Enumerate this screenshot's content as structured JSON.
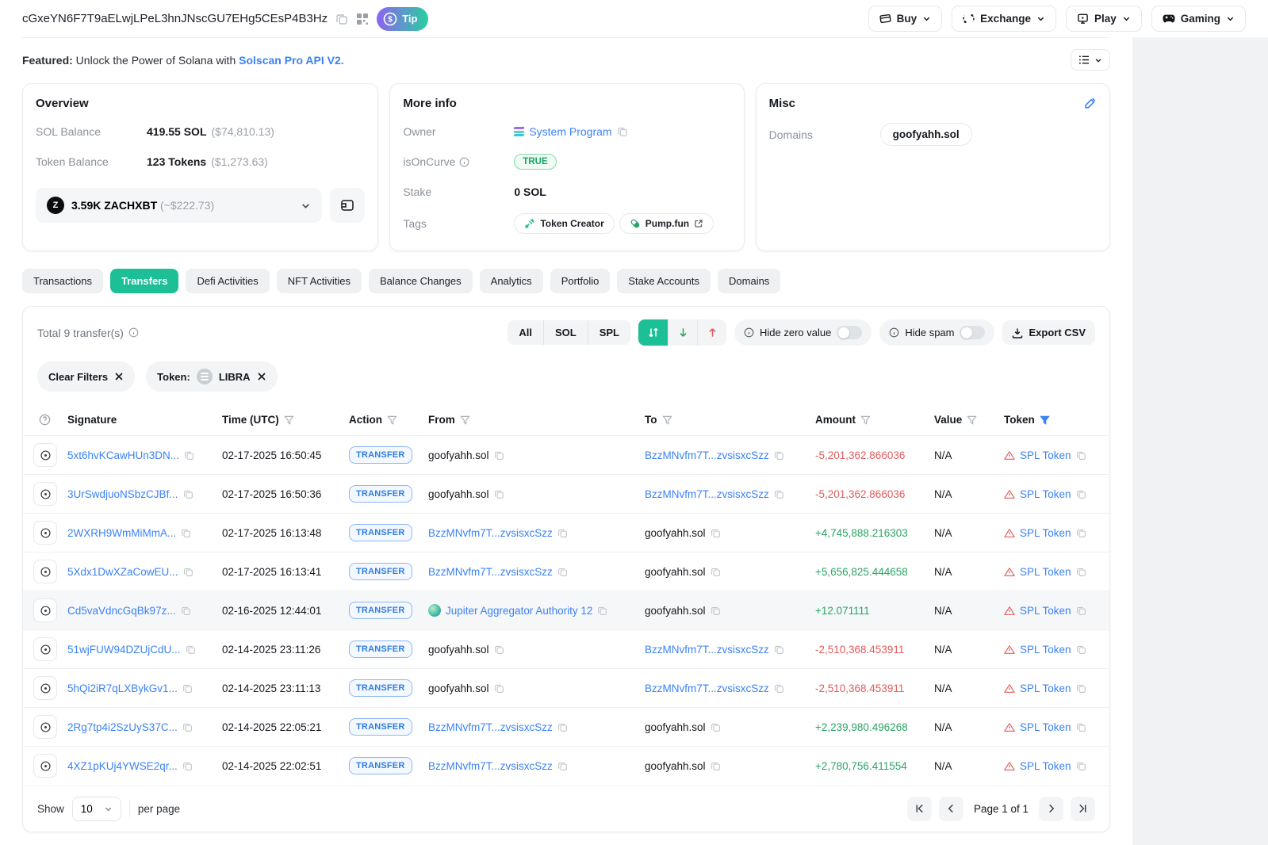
{
  "header": {
    "address": "cGxeYN6F7T9aELwjLPeL3hnJNscGU7EHg5CEsP4B3Hz",
    "tip_label": "Tip",
    "nav_buttons": [
      {
        "label": "Buy",
        "icon": "card-icon"
      },
      {
        "label": "Exchange",
        "icon": "exchange-icon"
      },
      {
        "label": "Play",
        "icon": "monitor-play-icon"
      },
      {
        "label": "Gaming",
        "icon": "gamepad-icon"
      }
    ]
  },
  "featured": {
    "prefix": "Featured:",
    "text": " Unlock the Power of Solana with ",
    "link": "Solscan Pro API V2."
  },
  "overview": {
    "title": "Overview",
    "sol_balance_label": "SOL Balance",
    "sol_balance": "419.55 SOL",
    "sol_balance_usd": "($74,810.13)",
    "token_balance_label": "Token Balance",
    "token_balance": "123 Tokens",
    "token_balance_usd": "($1,273.63)",
    "token_selector": {
      "amount": "3.59K ZACHXBT",
      "usd": "(~$222.73)",
      "token_icon": "zachxbt-token-icon"
    }
  },
  "more_info": {
    "title": "More info",
    "owner_label": "Owner",
    "owner": "System Program",
    "isoncurve_label": "isOnCurve",
    "isoncurve_value": "TRUE",
    "stake_label": "Stake",
    "stake_value": "0 SOL",
    "tags_label": "Tags",
    "tags": [
      {
        "label": "Token Creator",
        "icon": "gavel-icon",
        "external": false
      },
      {
        "label": "Pump.fun",
        "icon": "pill-icon",
        "external": true
      }
    ]
  },
  "misc": {
    "title": "Misc",
    "domains_label": "Domains",
    "domains": [
      "goofyahh.sol"
    ]
  },
  "tabs": {
    "active": "Transfers",
    "items": [
      "Transactions",
      "Transfers",
      "Defi Activities",
      "NFT Activities",
      "Balance Changes",
      "Analytics",
      "Portfolio",
      "Stake Accounts",
      "Domains"
    ]
  },
  "transfers": {
    "total_text": "Total 9 transfer(s)",
    "scope_options": [
      "All",
      "SOL",
      "SPL"
    ],
    "hide_zero_label": "Hide zero value",
    "hide_spam_label": "Hide spam",
    "export_label": "Export CSV",
    "filters": {
      "clear_label": "Clear Filters",
      "token_label": "Token:",
      "token_value": "LIBRA"
    },
    "table": {
      "headers": [
        "Signature",
        "Time (UTC)",
        "Action",
        "From",
        "To",
        "Amount",
        "Value",
        "Token"
      ],
      "rows": [
        {
          "signature": "5xt6hvKCawHUn3DN...",
          "time": "02-17-2025 16:50:45",
          "action": "TRANSFER",
          "from": "goofyahh.sol",
          "from_link": false,
          "from_icon": null,
          "to": "BzzMNvfm7T...zvsisxcSzz",
          "to_link": true,
          "amount": "-5,201,362.866036",
          "direction": "out",
          "value": "N/A",
          "token": "SPL Token",
          "highlight": false
        },
        {
          "signature": "3UrSwdjuoNSbzCJBf...",
          "time": "02-17-2025 16:50:36",
          "action": "TRANSFER",
          "from": "goofyahh.sol",
          "from_link": false,
          "from_icon": null,
          "to": "BzzMNvfm7T...zvsisxcSzz",
          "to_link": true,
          "amount": "-5,201,362.866036",
          "direction": "out",
          "value": "N/A",
          "token": "SPL Token",
          "highlight": false
        },
        {
          "signature": "2WXRH9WmMiMmA...",
          "time": "02-17-2025 16:13:48",
          "action": "TRANSFER",
          "from": "BzzMNvfm7T...zvsisxcSzz",
          "from_link": true,
          "from_icon": null,
          "to": "goofyahh.sol",
          "to_link": false,
          "amount": "+4,745,888.216303",
          "direction": "in",
          "value": "N/A",
          "token": "SPL Token",
          "highlight": false
        },
        {
          "signature": "5Xdx1DwXZaCowEU...",
          "time": "02-17-2025 16:13:41",
          "action": "TRANSFER",
          "from": "BzzMNvfm7T...zvsisxcSzz",
          "from_link": true,
          "from_icon": null,
          "to": "goofyahh.sol",
          "to_link": false,
          "amount": "+5,656,825.444658",
          "direction": "in",
          "value": "N/A",
          "token": "SPL Token",
          "highlight": false
        },
        {
          "signature": "Cd5vaVdncGqBk97z...",
          "time": "02-16-2025 12:44:01",
          "action": "TRANSFER",
          "from": "Jupiter Aggregator Authority 12",
          "from_link": true,
          "from_icon": "jupiter",
          "to": "goofyahh.sol",
          "to_link": false,
          "amount": "+12.071111",
          "direction": "in",
          "value": "N/A",
          "token": "SPL Token",
          "highlight": true
        },
        {
          "signature": "51wjFUW94DZUjCdU...",
          "time": "02-14-2025 23:11:26",
          "action": "TRANSFER",
          "from": "goofyahh.sol",
          "from_link": false,
          "from_icon": null,
          "to": "BzzMNvfm7T...zvsisxcSzz",
          "to_link": true,
          "amount": "-2,510,368.453911",
          "direction": "out",
          "value": "N/A",
          "token": "SPL Token",
          "highlight": false
        },
        {
          "signature": "5hQi2iR7qLXBykGv1...",
          "time": "02-14-2025 23:11:13",
          "action": "TRANSFER",
          "from": "goofyahh.sol",
          "from_link": false,
          "from_icon": null,
          "to": "BzzMNvfm7T...zvsisxcSzz",
          "to_link": true,
          "amount": "-2,510,368.453911",
          "direction": "out",
          "value": "N/A",
          "token": "SPL Token",
          "highlight": false
        },
        {
          "signature": "2Rg7tp4i2SzUyS37C...",
          "time": "02-14-2025 22:05:21",
          "action": "TRANSFER",
          "from": "BzzMNvfm7T...zvsisxcSzz",
          "from_link": true,
          "from_icon": null,
          "to": "goofyahh.sol",
          "to_link": false,
          "amount": "+2,239,980.496268",
          "direction": "in",
          "value": "N/A",
          "token": "SPL Token",
          "highlight": false
        },
        {
          "signature": "4XZ1pKUj4YWSE2qr...",
          "time": "02-14-2025 22:02:51",
          "action": "TRANSFER",
          "from": "BzzMNvfm7T...zvsisxcSzz",
          "from_link": true,
          "from_icon": null,
          "to": "goofyahh.sol",
          "to_link": false,
          "amount": "+2,780,756.411554",
          "direction": "in",
          "value": "N/A",
          "token": "SPL Token",
          "highlight": false
        }
      ]
    },
    "pagination": {
      "show_label": "Show",
      "per_page": "10",
      "per_page_suffix": "per page",
      "page_text": "Page 1 of 1"
    }
  },
  "colors": {
    "accent_green": "#1dbf96",
    "link_blue": "#3b82f6",
    "amount_red": "#e25c5c",
    "amount_green": "#2ca465"
  }
}
